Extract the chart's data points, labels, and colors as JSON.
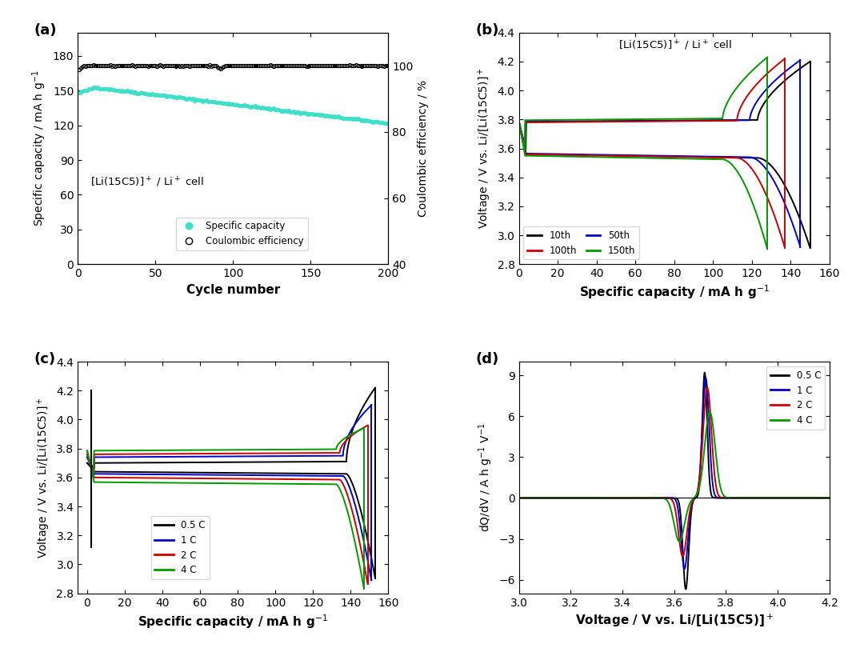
{
  "fig_size": [
    10.8,
    8.15
  ],
  "panel_labels": [
    "(a)",
    "(b)",
    "(c)",
    "(d)"
  ],
  "panel_a": {
    "title": "[Li(15C5)]$^+$ / Li$^+$ cell",
    "xlabel": "Cycle number",
    "ylabel_left": "Specific capacity / mA h g$^{-1}$",
    "ylabel_right": "Coulombic efficiency / %",
    "xlim": [
      0,
      200
    ],
    "ylim_left": [
      0,
      200
    ],
    "ylim_right": [
      40,
      110
    ],
    "yticks_left": [
      0,
      30,
      60,
      90,
      120,
      150,
      180
    ],
    "yticks_right": [
      40,
      60,
      80,
      100
    ],
    "xticks": [
      0,
      50,
      100,
      150,
      200
    ],
    "capacity_color": "#40e0c8",
    "ce_color": "#000000",
    "legend_labels": [
      "Specific capacity",
      "Coulombic efficiency"
    ]
  },
  "panel_b": {
    "title": "[Li(15C5)]$^+$ / Li$^+$ cell",
    "xlabel": "Specific capacity / mA h g$^{-1}$",
    "ylabel": "Voltage / V vs. Li/[Li(15C5)]$^+$",
    "xlim": [
      0,
      160
    ],
    "ylim": [
      2.8,
      4.4
    ],
    "xticks": [
      0,
      20,
      40,
      60,
      80,
      100,
      120,
      140,
      160
    ],
    "yticks": [
      2.8,
      3.0,
      3.2,
      3.4,
      3.6,
      3.8,
      4.0,
      4.2,
      4.4
    ],
    "colors": [
      "#000000",
      "#0000cc",
      "#cc0000",
      "#009900"
    ],
    "labels": [
      "10th",
      "50th",
      "100th",
      "150th"
    ]
  },
  "panel_c": {
    "xlabel": "Specific capacity / mA h g$^{-1}$",
    "ylabel": "Voltage / V vs. Li/[Li(15C5)]$^+$",
    "xlim": [
      -5,
      160
    ],
    "ylim": [
      2.8,
      4.4
    ],
    "xticks": [
      0,
      20,
      40,
      60,
      80,
      100,
      120,
      140,
      160
    ],
    "yticks": [
      2.8,
      3.0,
      3.2,
      3.4,
      3.6,
      3.8,
      4.0,
      4.2,
      4.4
    ],
    "colors": [
      "#000000",
      "#0000cc",
      "#cc0000",
      "#009900"
    ],
    "labels": [
      "0.5 C",
      "1 C",
      "2 C",
      "4 C"
    ]
  },
  "panel_d": {
    "xlabel": "Voltage / V vs. Li/[Li(15C5)]$^+$",
    "ylabel": "dQ/dV / A h g$^{-1}$ V$^{-1}$",
    "xlim": [
      3.0,
      4.2
    ],
    "ylim": [
      -7,
      10
    ],
    "xticks": [
      3.0,
      3.2,
      3.4,
      3.6,
      3.8,
      4.0,
      4.2
    ],
    "yticks": [
      -6,
      -3,
      0,
      3,
      6,
      9
    ],
    "colors": [
      "#000000",
      "#0000cc",
      "#cc0000",
      "#009900"
    ],
    "labels": [
      "0.5 C",
      "1 C",
      "2 C",
      "4 C"
    ]
  }
}
